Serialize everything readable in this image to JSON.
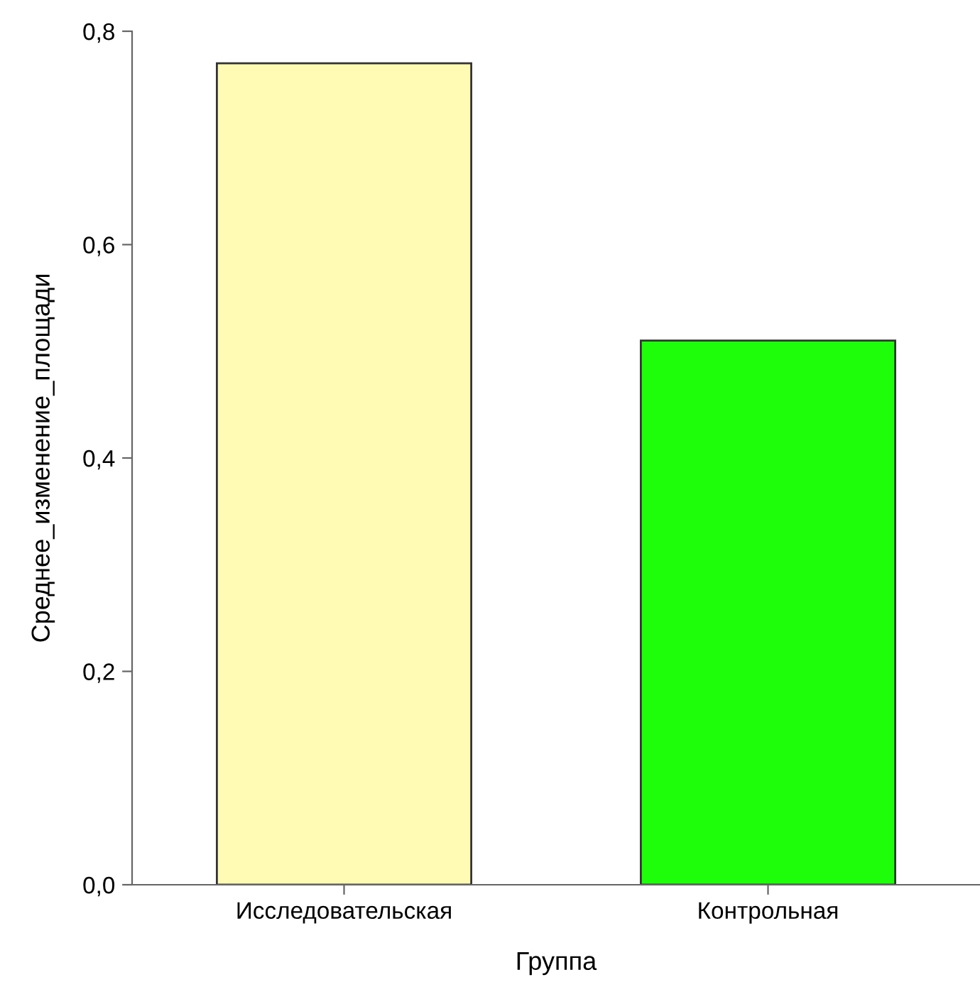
{
  "chart_data": {
    "type": "bar",
    "xlabel": "Группа",
    "ylabel": "Среднее_изменение_площади",
    "categories": [
      "Исследовательская",
      "Контрольная"
    ],
    "values": [
      0.77,
      0.51
    ],
    "colors": [
      "#fffab4",
      "#1efe0a"
    ],
    "ylim": [
      0,
      0.8
    ],
    "yticks": [
      {
        "value": 0,
        "label": "0,0"
      },
      {
        "value": 0.2,
        "label": "0,2"
      },
      {
        "value": 0.4,
        "label": "0,4"
      },
      {
        "value": 0.6,
        "label": "0,6"
      },
      {
        "value": 0.8,
        "label": "0,8"
      }
    ],
    "grid": false,
    "legend": false
  }
}
